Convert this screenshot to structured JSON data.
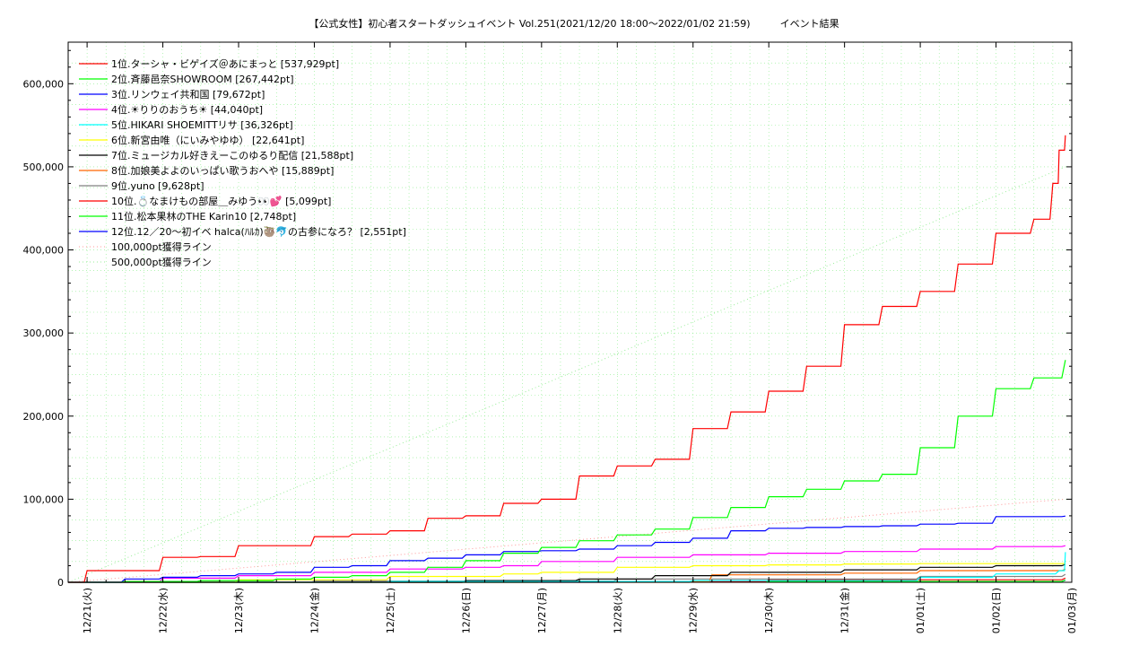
{
  "chart_data": {
    "type": "line",
    "title": "【公式女性】初心者スタートダッシュイベント Vol.251(2021/12/20 18:00～2022/01/02 21:59)　　　イベント結果",
    "xlabel": "",
    "ylabel": "",
    "x_range": [
      "2021-12-20 18:00",
      "2022-01-03 00:00"
    ],
    "ylim": [
      0,
      650000
    ],
    "y_ticks": [
      0,
      100000,
      200000,
      300000,
      400000,
      500000,
      600000
    ],
    "y_tick_labels": [
      "0",
      "100,000",
      "200,000",
      "300,000",
      "400,000",
      "500,000",
      "600,000"
    ],
    "x_tick_labels": [
      "12/21(火)",
      "12/22(水)",
      "12/23(木)",
      "12/24(金)",
      "12/25(土)",
      "12/26(日)",
      "12/27(月)",
      "12/28(火)",
      "12/29(水)",
      "12/30(木)",
      "12/31(金)",
      "01/01(土)",
      "01/02(日)",
      "01/03(月)"
    ],
    "grid": true,
    "legend_position": "top-left",
    "series": [
      {
        "name": "1位.ターシャ・ビゲイズ＠あにまっと [537,929pt]",
        "color": "#ff0000",
        "x": [
          "2021-12-20 18:00",
          "2021-12-21 00:00",
          "2021-12-21 06:00",
          "2021-12-22 00:00",
          "2021-12-22 12:00",
          "2021-12-23 00:00",
          "2021-12-23 12:00",
          "2021-12-24 00:00",
          "2021-12-24 12:00",
          "2021-12-25 00:00",
          "2021-12-25 12:00",
          "2021-12-26 00:00",
          "2021-12-26 12:00",
          "2021-12-27 00:00",
          "2021-12-27 12:00",
          "2021-12-28 00:00",
          "2021-12-28 12:00",
          "2021-12-29 00:00",
          "2021-12-29 12:00",
          "2021-12-30 00:00",
          "2021-12-30 12:00",
          "2021-12-31 00:00",
          "2021-12-31 12:00",
          "2022-01-01 00:00",
          "2022-01-01 12:00",
          "2022-01-02 00:00",
          "2022-01-02 12:00",
          "2022-01-02 18:00",
          "2022-01-02 20:00",
          "2022-01-02 21:59"
        ],
        "y": [
          0,
          14000,
          14000,
          30000,
          31000,
          44000,
          44000,
          55000,
          58000,
          62000,
          77000,
          80000,
          95000,
          100000,
          128000,
          140000,
          148000,
          185000,
          205000,
          230000,
          260000,
          310000,
          332000,
          350000,
          383000,
          420000,
          437000,
          480000,
          520000,
          537929
        ]
      },
      {
        "name": "2位.斉藤邑奈SHOWROOM [267,442pt]",
        "color": "#00ff00",
        "x": [
          "2021-12-20 18:00",
          "2021-12-21 12:00",
          "2021-12-22 12:00",
          "2021-12-23 12:00",
          "2021-12-24 00:00",
          "2021-12-24 12:00",
          "2021-12-25 00:00",
          "2021-12-25 12:00",
          "2021-12-26 00:00",
          "2021-12-26 12:00",
          "2021-12-27 00:00",
          "2021-12-27 12:00",
          "2021-12-28 00:00",
          "2021-12-28 12:00",
          "2021-12-29 00:00",
          "2021-12-29 12:00",
          "2021-12-30 00:00",
          "2021-12-30 12:00",
          "2021-12-31 00:00",
          "2021-12-31 12:00",
          "2022-01-01 00:00",
          "2022-01-01 12:00",
          "2022-01-02 00:00",
          "2022-01-02 12:00",
          "2022-01-02 21:59"
        ],
        "y": [
          0,
          1000,
          2000,
          4000,
          6000,
          8000,
          12000,
          18000,
          26000,
          35000,
          42000,
          50000,
          57000,
          64000,
          78000,
          90000,
          103000,
          112000,
          122000,
          130000,
          162000,
          200000,
          233000,
          246000,
          267442
        ]
      },
      {
        "name": "3位.リンウェイ共和国 [79,672pt]",
        "color": "#0000ff",
        "x": [
          "2021-12-20 18:00",
          "2021-12-21 12:00",
          "2021-12-22 00:00",
          "2021-12-22 12:00",
          "2021-12-23 00:00",
          "2021-12-23 12:00",
          "2021-12-24 00:00",
          "2021-12-24 12:00",
          "2021-12-25 00:00",
          "2021-12-25 12:00",
          "2021-12-26 00:00",
          "2021-12-26 12:00",
          "2021-12-27 00:00",
          "2021-12-27 12:00",
          "2021-12-28 00:00",
          "2021-12-28 12:00",
          "2021-12-29 00:00",
          "2021-12-29 12:00",
          "2021-12-30 00:00",
          "2021-12-30 12:00",
          "2021-12-31 00:00",
          "2021-12-31 12:00",
          "2022-01-01 00:00",
          "2022-01-01 12:00",
          "2022-01-02 00:00",
          "2022-01-02 21:59"
        ],
        "y": [
          0,
          4000,
          6000,
          8000,
          10000,
          12000,
          18000,
          20000,
          26000,
          29000,
          33000,
          37000,
          38000,
          40000,
          44000,
          48000,
          53000,
          62000,
          65000,
          66000,
          67000,
          68000,
          70000,
          71000,
          79000,
          79672
        ]
      },
      {
        "name": "4位.☀りりのおうち☀ [44,040pt]",
        "color": "#ff00ff",
        "x": [
          "2021-12-20 18:00",
          "2021-12-22 00:00",
          "2021-12-23 00:00",
          "2021-12-24 00:00",
          "2021-12-25 00:00",
          "2021-12-26 00:00",
          "2021-12-26 12:00",
          "2021-12-27 00:00",
          "2021-12-28 00:00",
          "2021-12-29 00:00",
          "2021-12-30 00:00",
          "2021-12-31 00:00",
          "2022-01-01 00:00",
          "2022-01-02 00:00",
          "2022-01-02 21:59"
        ],
        "y": [
          0,
          5000,
          8000,
          12000,
          16000,
          18000,
          20000,
          25000,
          30000,
          33000,
          35000,
          37000,
          40000,
          43000,
          44040
        ]
      },
      {
        "name": "5位.HIKARI SHOEMITTリサ [36,326pt]",
        "color": "#00ffff",
        "x": [
          "2021-12-20 18:00",
          "2021-12-25 00:00",
          "2021-12-29 00:00",
          "2022-01-01 00:00",
          "2022-01-02 00:00",
          "2022-01-02 20:00",
          "2022-01-02 21:59"
        ],
        "y": [
          0,
          1000,
          2000,
          6000,
          10000,
          14000,
          36326
        ]
      },
      {
        "name": "6位.新宮由唯（にいみやゆゆ） [22,641pt]",
        "color": "#ffff00",
        "x": [
          "2021-12-20 18:00",
          "2021-12-23 00:00",
          "2021-12-25 00:00",
          "2021-12-26 12:00",
          "2021-12-27 00:00",
          "2021-12-28 00:00",
          "2021-12-29 00:00",
          "2021-12-30 00:00",
          "2021-12-31 00:00",
          "2022-01-01 00:00",
          "2022-01-02 21:59"
        ],
        "y": [
          0,
          3000,
          7000,
          10000,
          12000,
          18000,
          20000,
          21000,
          22000,
          22500,
          22641
        ]
      },
      {
        "name": "7位.ミュージカル好きえーこのゆるり配信 [21,588pt]",
        "color": "#000000",
        "x": [
          "2021-12-20 18:00",
          "2021-12-26 00:00",
          "2021-12-27 12:00",
          "2021-12-28 12:00",
          "2021-12-29 12:00",
          "2021-12-31 00:00",
          "2022-01-01 00:00",
          "2022-01-02 00:00",
          "2022-01-02 21:59"
        ],
        "y": [
          0,
          2000,
          4000,
          8000,
          12000,
          15000,
          18000,
          20000,
          21588
        ]
      },
      {
        "name": "8位.加娘美よよのいっぱい歌うおへや [15,889pt]",
        "color": "#ff6600",
        "x": [
          "2021-12-20 18:00",
          "2021-12-29 00:00",
          "2021-12-29 06:00",
          "2021-12-31 00:00",
          "2022-01-01 00:00",
          "2022-01-02 21:59"
        ],
        "y": [
          0,
          1000,
          9000,
          11000,
          14000,
          15889
        ]
      },
      {
        "name": "9位.yuno [9,628pt]",
        "color": "#808080",
        "x": [
          "2021-12-20 18:00",
          "2021-12-24 00:00",
          "2021-12-28 00:00",
          "2022-01-01 00:00",
          "2022-01-02 21:59"
        ],
        "y": [
          0,
          1500,
          4000,
          7000,
          9628
        ]
      },
      {
        "name": "10位.💍なまけもの部屋＿みゆう👀💕 [5,099pt]",
        "color": "#ff0000",
        "x": [
          "2021-12-20 18:00",
          "2021-12-26 00:00",
          "2021-12-30 00:00",
          "2022-01-02 21:59"
        ],
        "y": [
          0,
          1000,
          3000,
          5099
        ]
      },
      {
        "name": "11位.松本果林のTHE Karin10 [2,748pt]",
        "color": "#00ff00",
        "x": [
          "2021-12-20 18:00",
          "2021-12-27 00:00",
          "2022-01-02 21:59"
        ],
        "y": [
          0,
          1000,
          2748
        ]
      },
      {
        "name": "12位.12／20～初イベ halca(ﾊﾙｶ)🦥🐬の古参になろ？ [2,551pt]",
        "color": "#0000ff",
        "x": [
          "2021-12-20 18:00",
          "2021-12-28 00:00",
          "2022-01-02 21:59"
        ],
        "y": [
          0,
          1000,
          2551
        ]
      }
    ],
    "reference_lines": [
      {
        "name": "100,000pt獲得ライン",
        "color": "#ff9999",
        "x": [
          "2021-12-20 18:00",
          "2022-01-02 21:59"
        ],
        "y": [
          0,
          100000
        ]
      },
      {
        "name": "500,000pt獲得ライン",
        "color": "#99ee99",
        "x": [
          "2021-12-20 18:00",
          "2022-01-02 21:59"
        ],
        "y": [
          0,
          500000
        ]
      }
    ]
  }
}
